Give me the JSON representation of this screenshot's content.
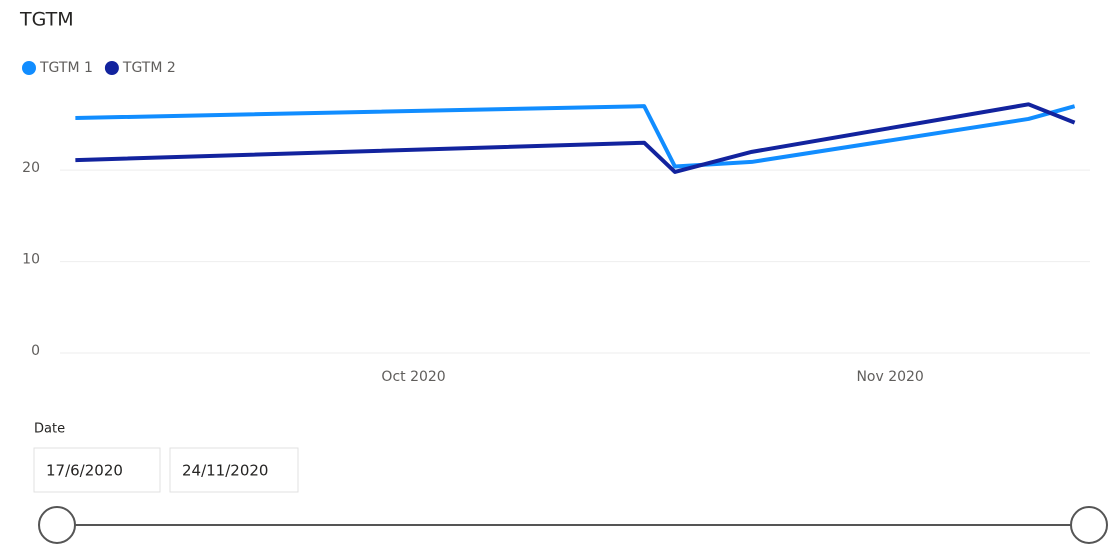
{
  "chart_data": {
    "type": "line",
    "title": "TGTM",
    "x": [
      "2020-09-09",
      "2020-10-16",
      "2020-10-18",
      "2020-10-23",
      "2020-11-10",
      "2020-11-13"
    ],
    "series": [
      {
        "name": "TGTM 1",
        "color": "#118dff",
        "values": [
          25.7,
          27,
          20.4,
          20.9,
          25.6,
          27
        ]
      },
      {
        "name": "TGTM 2",
        "color": "#12239e",
        "values": [
          21.1,
          23,
          19.8,
          22,
          27.2,
          25.2
        ]
      }
    ],
    "xlim": [
      "2020-09-08",
      "2020-11-14"
    ],
    "xticks": [
      {
        "value": "2020-10-01",
        "label": "Oct 2020"
      },
      {
        "value": "2020-11-01",
        "label": "Nov 2020"
      }
    ],
    "ylim": [
      0,
      28
    ],
    "yticks": [
      0,
      10,
      20
    ],
    "grid": true,
    "legend": "top-left"
  },
  "slicer": {
    "title": "Date",
    "start": "17/6/2020",
    "end": "24/11/2020"
  }
}
